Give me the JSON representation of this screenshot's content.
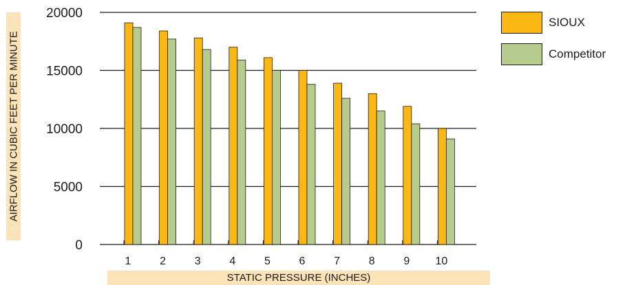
{
  "chart_data": {
    "type": "bar",
    "title": "",
    "xlabel": "STATIC PRESSURE (INCHES)",
    "ylabel": "AIRFLOW IN CUBIC FEET PER MINUTE",
    "categories": [
      "1",
      "2",
      "3",
      "4",
      "5",
      "6",
      "7",
      "8",
      "9",
      "10"
    ],
    "series": [
      {
        "name": "SIOUX",
        "color": "#fbb714",
        "values": [
          19100,
          18400,
          17800,
          17000,
          16100,
          15000,
          13900,
          13000,
          11900,
          10000
        ]
      },
      {
        "name": "Competitor",
        "color": "#b5cc8e",
        "values": [
          18700,
          17700,
          16800,
          15900,
          15000,
          13800,
          12600,
          11500,
          10400,
          9100
        ]
      }
    ],
    "yticks": [
      0,
      5000,
      10000,
      15000,
      20000
    ],
    "ylim": [
      0,
      20000
    ],
    "grid": true,
    "legend": "right"
  }
}
